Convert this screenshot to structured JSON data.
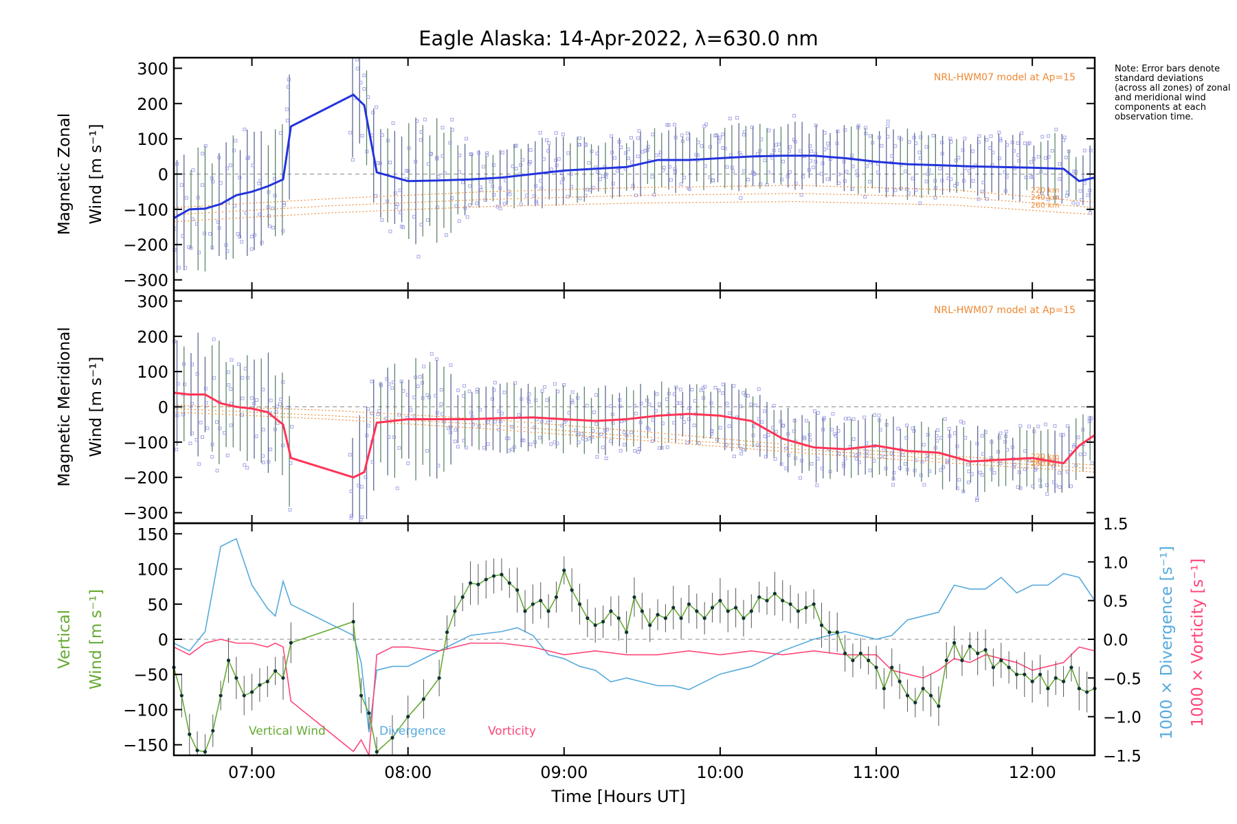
{
  "title": "Eagle Alaska: 14-Apr-2022, λ=630.0 nm",
  "note": "Note: Error bars denote standard deviations (across all zones) of zonal and meridional wind components at each observation time.",
  "xlabel": "Time [Hours UT]",
  "x_ticks": [
    "07:00",
    "08:00",
    "09:00",
    "10:00",
    "11:00",
    "12:00"
  ],
  "colors": {
    "zonal": "#2233dd",
    "meridional": "#ff3355",
    "vertical": "#66aa33",
    "divergence": "#55aadd",
    "vorticity": "#ff4477",
    "model": "#ee8833",
    "scatter": "#8888dd"
  },
  "chart_data": [
    {
      "type": "line",
      "panel": "zonal",
      "ylabel_line1": "Magnetic Zonal",
      "ylabel_line2": "Wind [m s⁻¹]",
      "ylim": [
        -330,
        330
      ],
      "yticks": [
        -300,
        -200,
        -100,
        0,
        100,
        200,
        300
      ],
      "xlim": [
        6.5,
        12.4
      ],
      "model_label": "NRL-HWM07 model at Ap=15",
      "model_altitudes": [
        "220 km",
        "240 km",
        "260 km"
      ],
      "series": [
        {
          "x": [
            6.5,
            6.6,
            6.7,
            6.8,
            6.9,
            7.0,
            7.1,
            7.2,
            7.25,
            7.65,
            7.72,
            7.8,
            8.0,
            8.2,
            8.4,
            8.6,
            8.8,
            9.0,
            9.2,
            9.4,
            9.6,
            9.8,
            10.0,
            10.2,
            10.4,
            10.6,
            10.8,
            11.0,
            11.2,
            11.4,
            11.6,
            11.8,
            12.0,
            12.2,
            12.3,
            12.4
          ],
          "y": [
            -125,
            -100,
            -98,
            -85,
            -60,
            -50,
            -35,
            -15,
            135,
            225,
            195,
            5,
            -20,
            -18,
            -15,
            -10,
            0,
            10,
            15,
            20,
            40,
            40,
            45,
            50,
            52,
            52,
            45,
            35,
            28,
            25,
            22,
            20,
            18,
            15,
            -20,
            -10
          ]
        }
      ],
      "model": [
        {
          "x": [
            6.5,
            7.5,
            8.5,
            9.5,
            10.5,
            11.5,
            12.4
          ],
          "y": [
            -95,
            -70,
            -50,
            -38,
            -32,
            -45,
            -80
          ]
        },
        {
          "x": [
            6.5,
            7.5,
            8.5,
            9.5,
            10.5,
            11.5,
            12.4
          ],
          "y": [
            -115,
            -90,
            -72,
            -60,
            -55,
            -65,
            -95
          ]
        },
        {
          "x": [
            6.5,
            7.5,
            8.5,
            9.5,
            10.5,
            11.5,
            12.4
          ],
          "y": [
            -135,
            -110,
            -92,
            -82,
            -78,
            -88,
            -115
          ]
        }
      ]
    },
    {
      "type": "line",
      "panel": "meridional",
      "ylabel_line1": "Magnetic Meridional",
      "ylabel_line2": "Wind [m s⁻¹]",
      "ylim": [
        -330,
        330
      ],
      "yticks": [
        -300,
        -200,
        -100,
        0,
        100,
        200,
        300
      ],
      "xlim": [
        6.5,
        12.4
      ],
      "model_label": "NRL-HWM07 model at Ap=15",
      "model_altitudes": [
        "220 km",
        "240 km",
        "260 km"
      ],
      "series": [
        {
          "x": [
            6.5,
            6.6,
            6.7,
            6.8,
            6.9,
            7.0,
            7.1,
            7.2,
            7.25,
            7.65,
            7.72,
            7.8,
            8.0,
            8.2,
            8.4,
            8.6,
            8.8,
            9.0,
            9.2,
            9.4,
            9.6,
            9.8,
            10.0,
            10.2,
            10.4,
            10.6,
            10.8,
            11.0,
            11.2,
            11.4,
            11.6,
            11.8,
            12.0,
            12.2,
            12.3,
            12.4
          ],
          "y": [
            40,
            35,
            35,
            10,
            0,
            -5,
            -15,
            -50,
            -145,
            -200,
            -185,
            -45,
            -35,
            -35,
            -35,
            -32,
            -30,
            -35,
            -40,
            -35,
            -25,
            -20,
            -25,
            -40,
            -90,
            -115,
            -120,
            -110,
            -125,
            -130,
            -155,
            -150,
            -145,
            -160,
            -110,
            -80
          ]
        }
      ],
      "model": [
        {
          "x": [
            6.5,
            7.5,
            8.5,
            9.5,
            10.5,
            11.5,
            12.4
          ],
          "y": [
            5,
            -10,
            -35,
            -70,
            -110,
            -140,
            -165
          ]
        },
        {
          "x": [
            6.5,
            7.5,
            8.5,
            9.5,
            10.5,
            11.5,
            12.4
          ],
          "y": [
            -5,
            -25,
            -50,
            -85,
            -120,
            -150,
            -175
          ]
        },
        {
          "x": [
            6.5,
            7.5,
            8.5,
            9.5,
            10.5,
            11.5,
            12.4
          ],
          "y": [
            -15,
            -35,
            -62,
            -95,
            -130,
            -160,
            -185
          ]
        }
      ]
    },
    {
      "type": "line",
      "panel": "vertical",
      "ylabel_line1": "Vertical",
      "ylabel_line2": "Wind [m s⁻¹]",
      "y2label_div": "1000 × Divergence [s⁻¹]",
      "y2label_vort": "1000 × Vorticity [s⁻¹]",
      "ylim": [
        -165,
        165
      ],
      "yticks": [
        -150,
        -100,
        -50,
        0,
        50,
        100,
        150
      ],
      "y2lim": [
        -1.5,
        1.5
      ],
      "y2ticks": [
        -1.5,
        -1.0,
        -0.5,
        0.0,
        0.5,
        1.0,
        1.5
      ],
      "xlim": [
        6.5,
        12.4
      ],
      "legend": [
        "Vertical Wind",
        "Divergence",
        "Vorticity"
      ],
      "series": [
        {
          "name": "Vertical Wind",
          "x": [
            6.5,
            6.55,
            6.6,
            6.65,
            6.7,
            6.75,
            6.8,
            6.85,
            6.9,
            6.95,
            7.0,
            7.05,
            7.1,
            7.15,
            7.2,
            7.25,
            7.65,
            7.7,
            7.75,
            7.8,
            7.9,
            8.0,
            8.1,
            8.2,
            8.25,
            8.3,
            8.35,
            8.4,
            8.45,
            8.5,
            8.55,
            8.6,
            8.65,
            8.7,
            8.75,
            8.8,
            8.85,
            8.9,
            8.95,
            9.0,
            9.05,
            9.1,
            9.15,
            9.2,
            9.25,
            9.3,
            9.35,
            9.4,
            9.45,
            9.5,
            9.55,
            9.6,
            9.65,
            9.7,
            9.75,
            9.8,
            9.85,
            9.9,
            9.95,
            10.0,
            10.05,
            10.1,
            10.15,
            10.2,
            10.25,
            10.3,
            10.35,
            10.4,
            10.45,
            10.5,
            10.55,
            10.6,
            10.65,
            10.7,
            10.75,
            10.8,
            10.85,
            10.9,
            10.95,
            11.0,
            11.05,
            11.1,
            11.15,
            11.2,
            11.25,
            11.3,
            11.35,
            11.4,
            11.45,
            11.5,
            11.55,
            11.6,
            11.65,
            11.7,
            11.75,
            11.8,
            11.85,
            11.9,
            11.95,
            12.0,
            12.05,
            12.1,
            12.15,
            12.2,
            12.25,
            12.3,
            12.35,
            12.4
          ],
          "y": [
            -40,
            -80,
            -135,
            -158,
            -160,
            -130,
            -80,
            -30,
            -55,
            -80,
            -75,
            -65,
            -60,
            -45,
            -55,
            -5,
            25,
            -80,
            -105,
            -160,
            -140,
            -110,
            -85,
            -55,
            10,
            40,
            60,
            80,
            78,
            85,
            90,
            92,
            80,
            70,
            40,
            50,
            55,
            40,
            60,
            98,
            70,
            50,
            30,
            20,
            25,
            40,
            30,
            10,
            60,
            40,
            20,
            35,
            30,
            45,
            30,
            50,
            40,
            30,
            45,
            55,
            40,
            45,
            30,
            40,
            60,
            55,
            65,
            55,
            50,
            40,
            45,
            50,
            20,
            10,
            10,
            -20,
            -30,
            -20,
            -30,
            -40,
            -70,
            -40,
            -60,
            -80,
            -90,
            -70,
            -80,
            -95,
            -30,
            -5,
            -30,
            -10,
            -20,
            -15,
            -40,
            -30,
            -40,
            -50,
            -50,
            -60,
            -50,
            -70,
            -55,
            -60,
            -40,
            -70,
            -75,
            -70
          ]
        },
        {
          "name": "Divergence",
          "axis": "y2",
          "x": [
            6.5,
            6.6,
            6.7,
            6.8,
            6.9,
            7.0,
            7.1,
            7.15,
            7.2,
            7.25,
            7.65,
            7.7,
            7.75,
            7.8,
            7.9,
            8.0,
            8.2,
            8.4,
            8.6,
            8.7,
            8.8,
            8.9,
            9.0,
            9.1,
            9.2,
            9.3,
            9.4,
            9.5,
            9.6,
            9.7,
            9.8,
            9.9,
            10.0,
            10.1,
            10.2,
            10.4,
            10.6,
            10.8,
            10.9,
            11.0,
            11.1,
            11.2,
            11.3,
            11.4,
            11.5,
            11.6,
            11.7,
            11.8,
            11.9,
            12.0,
            12.1,
            12.2,
            12.3,
            12.4
          ],
          "y": [
            -0.05,
            -0.15,
            0.1,
            1.2,
            1.3,
            0.7,
            0.4,
            0.3,
            0.75,
            0.45,
            0.05,
            -0.3,
            -1.2,
            -0.4,
            -0.35,
            -0.35,
            -0.15,
            0.05,
            0.1,
            0.15,
            0.05,
            -0.2,
            -0.25,
            -0.35,
            -0.4,
            -0.55,
            -0.5,
            -0.55,
            -0.6,
            -0.6,
            -0.65,
            -0.55,
            -0.45,
            -0.4,
            -0.35,
            -0.15,
            0.0,
            0.1,
            0.05,
            0.0,
            0.05,
            0.25,
            0.3,
            0.35,
            0.7,
            0.65,
            0.65,
            0.8,
            0.6,
            0.7,
            0.7,
            0.85,
            0.8,
            0.5
          ]
        },
        {
          "name": "Vorticity",
          "axis": "y2",
          "x": [
            6.5,
            6.6,
            6.7,
            6.8,
            6.9,
            7.0,
            7.1,
            7.15,
            7.2,
            7.25,
            7.65,
            7.7,
            7.75,
            7.8,
            7.9,
            8.0,
            8.2,
            8.4,
            8.6,
            8.8,
            9.0,
            9.2,
            9.4,
            9.6,
            9.8,
            10.0,
            10.2,
            10.4,
            10.6,
            10.8,
            10.9,
            11.0,
            11.1,
            11.2,
            11.3,
            11.4,
            11.5,
            11.6,
            11.7,
            11.8,
            11.9,
            12.0,
            12.1,
            12.2,
            12.3,
            12.4
          ],
          "y": [
            -0.1,
            -0.2,
            -0.05,
            0.0,
            -0.05,
            -0.05,
            -0.1,
            -0.05,
            -0.1,
            -0.8,
            -1.45,
            -1.3,
            -1.55,
            -0.2,
            -0.1,
            -0.1,
            -0.15,
            -0.05,
            -0.05,
            -0.1,
            -0.2,
            -0.15,
            -0.2,
            -0.2,
            -0.15,
            -0.2,
            -0.15,
            -0.2,
            -0.15,
            -0.2,
            -0.2,
            -0.2,
            -0.4,
            -0.45,
            -0.5,
            -0.4,
            -0.25,
            -0.3,
            -0.2,
            -0.25,
            -0.3,
            -0.4,
            -0.35,
            -0.3,
            -0.1,
            -0.15
          ]
        }
      ]
    }
  ]
}
